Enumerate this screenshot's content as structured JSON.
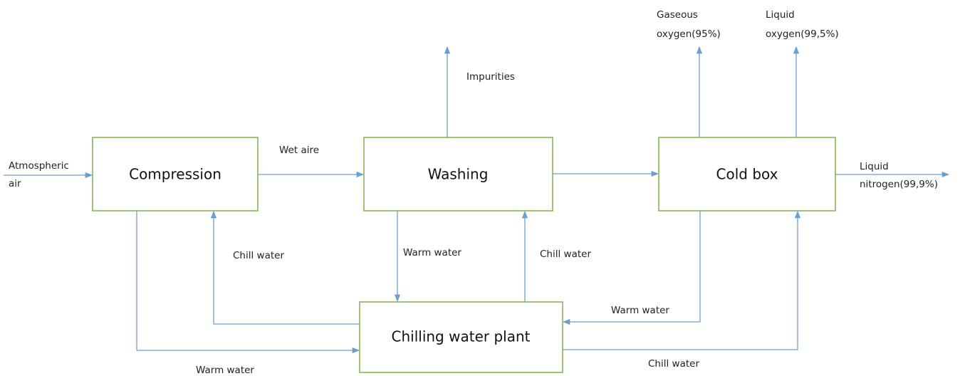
{
  "nodes": [
    {
      "label": "Compression"
    },
    {
      "label": "Washing"
    },
    {
      "label": "Cold box"
    },
    {
      "label": "Chilling water plant"
    }
  ],
  "edges": [
    {
      "label": [
        "Atmospheric",
        "air"
      ]
    },
    {
      "label": [
        "Wet aire"
      ]
    },
    {
      "label": [
        "Impurities"
      ]
    },
    {
      "label": [
        "Gaseous",
        "oxygen(95%)"
      ]
    },
    {
      "label": [
        "Liquid",
        "oxygen(99,5%)"
      ]
    },
    {
      "label": [
        "Liquid",
        "nitrogen(99,9%)"
      ]
    },
    {
      "label": [
        "Warm water"
      ]
    },
    {
      "label": [
        "Chill water"
      ]
    },
    {
      "label": [
        "Warm water"
      ]
    },
    {
      "label": [
        "Chill water"
      ]
    },
    {
      "label": [
        "Warm water"
      ]
    },
    {
      "label": [
        "Chill water"
      ]
    }
  ]
}
